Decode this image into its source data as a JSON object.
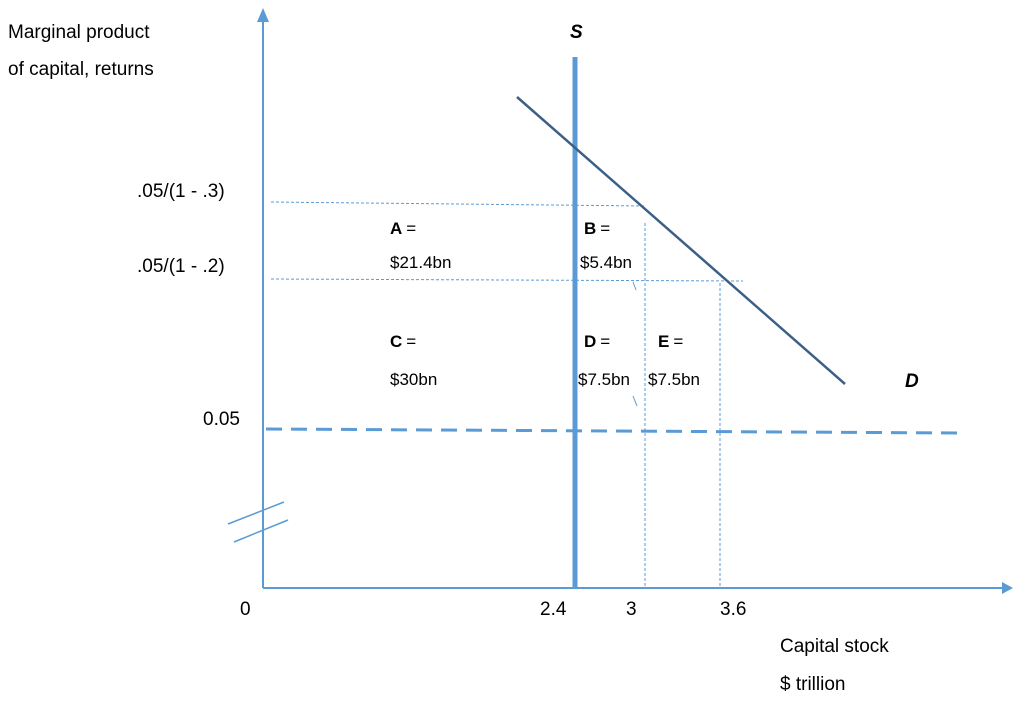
{
  "colors": {
    "axis": "#5b9bd5",
    "supply": "#5b9bd5",
    "demand": "#3c5f86",
    "guides": "#5b9bd5",
    "text": "#000000"
  },
  "axes": {
    "y_label_line1": "Marginal product",
    "y_label_line2": "of capital, returns",
    "x_label_line1": "Capital stock",
    "x_label_line2": "$ trillion",
    "origin": "0",
    "x_ticks": [
      "2.4",
      "3",
      "3.6"
    ],
    "y_ticks": [
      ".05/(1 - .3)",
      ".05/(1 - .2)",
      "0.05"
    ]
  },
  "curves": {
    "supply_label": "S",
    "demand_label": "D"
  },
  "areas": [
    {
      "letter": "A",
      "equals": "=",
      "value": "$21.4bn"
    },
    {
      "letter": "B",
      "equals": "=",
      "value": "$5.4bn"
    },
    {
      "letter": "C",
      "equals": "=",
      "value": "$30bn"
    },
    {
      "letter": "D",
      "equals": "=",
      "value": "$7.5bn"
    },
    {
      "letter": "E",
      "equals": "=",
      "value": "$7.5bn"
    }
  ]
}
